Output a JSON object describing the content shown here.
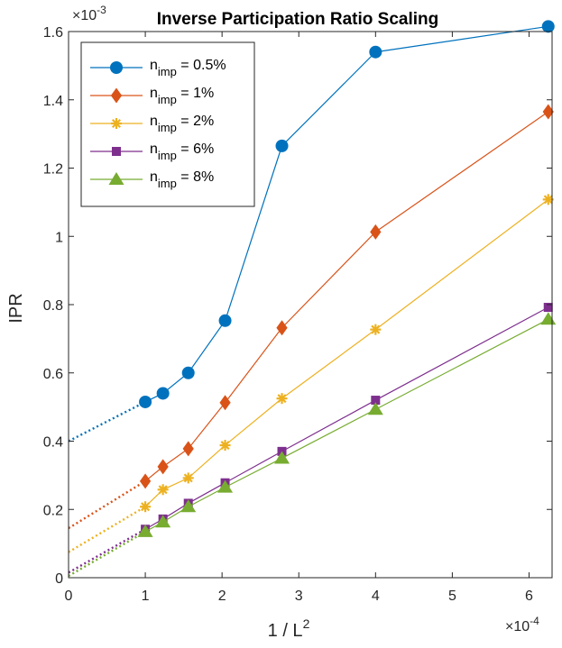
{
  "chart_data": {
    "type": "line",
    "title": "Inverse Participation Ratio Scaling",
    "xlabel": "1 / L",
    "xlabel_superscript": "2",
    "ylabel": "IPR",
    "x_exponent_base": "×10",
    "x_exponent_power": "-4",
    "y_exponent_base": "×10",
    "y_exponent_power": "-3",
    "xlim": [
      0,
      6.3
    ],
    "ylim": [
      0,
      1.6
    ],
    "xticks": [
      0,
      1,
      2,
      3,
      4,
      5,
      6
    ],
    "yticks": [
      0,
      0.2,
      0.4,
      0.6,
      0.8,
      1.0,
      1.2,
      1.4,
      1.6
    ],
    "ytick_labels": [
      "0",
      "0.2",
      "0.4",
      "0.6",
      "0.8",
      "1",
      "1.2",
      "1.4",
      "1.6"
    ],
    "grid": false,
    "legend_position": "top-left",
    "x": [
      1.0,
      1.23,
      1.56,
      2.04,
      2.78,
      4.0,
      6.25
    ],
    "series": [
      {
        "name": "n",
        "subscript": "imp",
        "suffix": " = 0.5%",
        "marker": "circle",
        "color": "#0072BD",
        "values": [
          0.515,
          0.54,
          0.6,
          0.753,
          1.265,
          1.54,
          1.615
        ],
        "intercept": 0.4
      },
      {
        "name": "n",
        "subscript": "imp",
        "suffix": " = 1%",
        "marker": "diamond",
        "color": "#D95319",
        "values": [
          0.283,
          0.325,
          0.378,
          0.513,
          0.732,
          1.013,
          1.365
        ],
        "intercept": 0.145
      },
      {
        "name": "n",
        "subscript": "imp",
        "suffix": " = 2%",
        "marker": "asterisk",
        "color": "#EDB120",
        "values": [
          0.208,
          0.258,
          0.292,
          0.388,
          0.525,
          0.727,
          1.108
        ],
        "intercept": 0.075
      },
      {
        "name": "n",
        "subscript": "imp",
        "suffix": " = 6%",
        "marker": "square",
        "color": "#7E2F8E",
        "values": [
          0.142,
          0.172,
          0.218,
          0.278,
          0.37,
          0.52,
          0.792
        ],
        "intercept": 0.015
      },
      {
        "name": "n",
        "subscript": "imp",
        "suffix": " = 8%",
        "marker": "triangle",
        "color": "#77AC30",
        "values": [
          0.135,
          0.163,
          0.208,
          0.265,
          0.35,
          0.493,
          0.757
        ],
        "intercept": 0.005
      }
    ]
  }
}
